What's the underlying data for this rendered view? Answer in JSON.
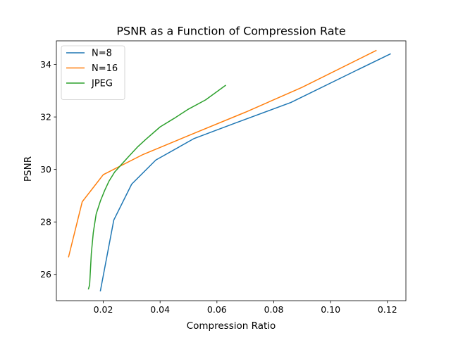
{
  "chart_data": {
    "type": "line",
    "title": "PSNR as a Function of Compression Rate",
    "xlabel": "Compression Ratio",
    "ylabel": "PSNR",
    "xlim": [
      0.0035,
      0.1265
    ],
    "ylim": [
      25.0,
      34.9
    ],
    "xticks": [
      0.02,
      0.04,
      0.06,
      0.08,
      0.1,
      0.12
    ],
    "xtick_labels": [
      "0.02",
      "0.04",
      "0.06",
      "0.08",
      "0.10",
      "0.12"
    ],
    "yticks": [
      26,
      28,
      30,
      32,
      34
    ],
    "ytick_labels": [
      "26",
      "28",
      "30",
      "32",
      "34"
    ],
    "grid": false,
    "legend_position": "upper-left",
    "series": [
      {
        "name": "N=8",
        "color": "#1f77b4",
        "points": [
          [
            0.019,
            25.38
          ],
          [
            0.0237,
            28.07
          ],
          [
            0.03,
            29.44
          ],
          [
            0.0385,
            30.36
          ],
          [
            0.052,
            31.18
          ],
          [
            0.066,
            31.75
          ],
          [
            0.086,
            32.55
          ],
          [
            0.109,
            33.77
          ],
          [
            0.121,
            34.4
          ]
        ]
      },
      {
        "name": "N=16",
        "color": "#ff7f0e",
        "points": [
          [
            0.0078,
            26.67
          ],
          [
            0.0126,
            28.77
          ],
          [
            0.02,
            29.8
          ],
          [
            0.034,
            30.57
          ],
          [
            0.05,
            31.29
          ],
          [
            0.07,
            32.18
          ],
          [
            0.09,
            33.13
          ],
          [
            0.116,
            34.53
          ]
        ]
      },
      {
        "name": "JPEG",
        "color": "#2ca02c",
        "points": [
          [
            0.0148,
            25.45
          ],
          [
            0.0152,
            25.6
          ],
          [
            0.0158,
            26.8
          ],
          [
            0.0165,
            27.6
          ],
          [
            0.0175,
            28.3
          ],
          [
            0.019,
            28.8
          ],
          [
            0.0205,
            29.2
          ],
          [
            0.022,
            29.55
          ],
          [
            0.024,
            29.9
          ],
          [
            0.0265,
            30.2
          ],
          [
            0.029,
            30.5
          ],
          [
            0.032,
            30.85
          ],
          [
            0.035,
            31.15
          ],
          [
            0.04,
            31.62
          ],
          [
            0.045,
            31.95
          ],
          [
            0.05,
            32.3
          ],
          [
            0.056,
            32.65
          ],
          [
            0.063,
            33.2
          ]
        ]
      }
    ]
  }
}
